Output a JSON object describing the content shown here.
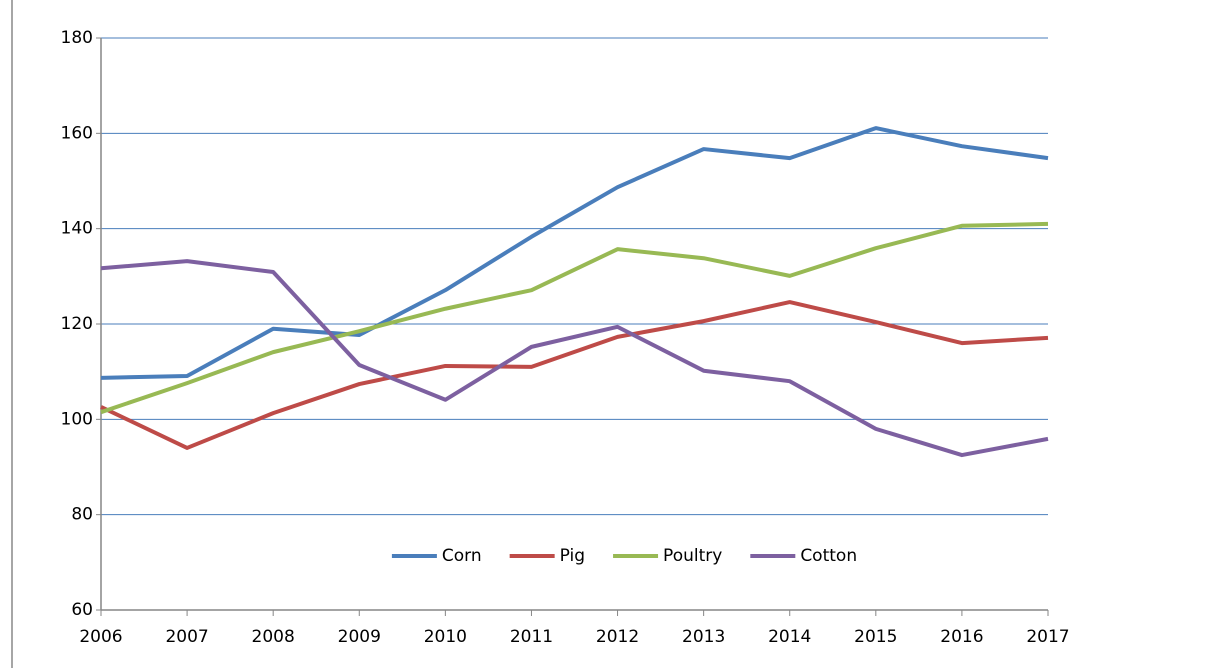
{
  "chart_data": {
    "type": "line",
    "x": [
      2006,
      2007,
      2008,
      2009,
      2010,
      2011,
      2012,
      2013,
      2014,
      2015,
      2016,
      2017
    ],
    "xlim": [
      2006,
      2017
    ],
    "xticks": [
      2006,
      2007,
      2008,
      2009,
      2010,
      2011,
      2012,
      2013,
      2014,
      2015,
      2016,
      2017
    ],
    "ylim": [
      60,
      180
    ],
    "yticks": [
      60,
      80,
      100,
      120,
      140,
      160,
      180
    ],
    "grid": true,
    "legend": "bottom",
    "series": [
      {
        "name": "Corn",
        "color": "#4a7ebb",
        "values": [
          108.7,
          109.1,
          119,
          117.7,
          127.1,
          138.3,
          148.7,
          156.7,
          154.8,
          161.1,
          157.3,
          154.8
        ]
      },
      {
        "name": "Pig",
        "color": "#be4b48",
        "values": [
          102.6,
          94,
          101.3,
          107.4,
          111.2,
          111,
          117.3,
          120.6,
          124.6,
          120.4,
          116,
          117.1
        ]
      },
      {
        "name": "Poultry",
        "color": "#98b954",
        "values": [
          101.5,
          107.6,
          114.1,
          118.5,
          123.2,
          127.1,
          135.7,
          133.8,
          130.1,
          135.9,
          140.6,
          141
        ]
      },
      {
        "name": "Cotton",
        "color": "#7d60a0",
        "values": [
          131.7,
          133.2,
          130.9,
          111.4,
          104.1,
          115.2,
          119.4,
          110.2,
          108,
          98,
          92.5,
          95.9
        ]
      }
    ]
  }
}
